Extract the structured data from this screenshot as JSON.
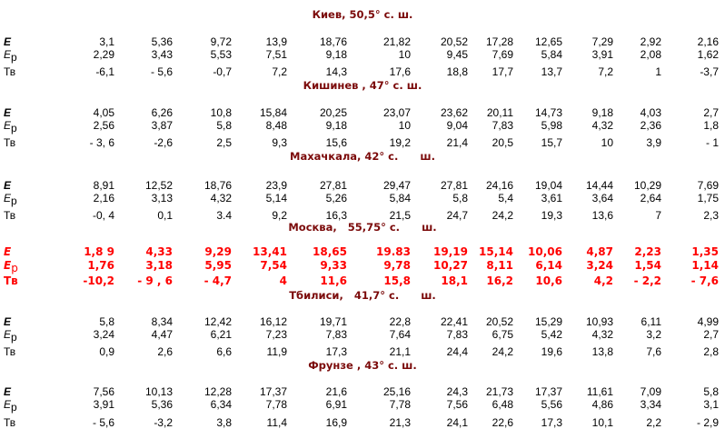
{
  "row_labels": {
    "E": "E",
    "Ep_main": "E",
    "Ep_sub": "р",
    "Tv": "Тв"
  },
  "colors": {
    "title": "#7b0a0a",
    "highlight": "#ff0000",
    "text": "#000000"
  },
  "cities": [
    {
      "title": "Киев, 50,5° с. ш.",
      "highlighted": false,
      "E": [
        "3,1",
        "5,36",
        "9,72",
        "13,9",
        "18,76",
        "21,82",
        "20,52",
        "17,28",
        "12,65",
        "7,29",
        "2,92",
        "2,16"
      ],
      "Ep": [
        "2,29",
        "3,43",
        "5,53",
        "7,51",
        "9,18",
        "10",
        "9,45",
        "7,69",
        "5,84",
        "3,91",
        "2,08",
        "1,62"
      ],
      "Tv": [
        "-6,1",
        "- 5,6",
        "-0,7",
        "7,2",
        "14,3",
        "17,6",
        "18,8",
        "17,7",
        "13,7",
        "7,2",
        "1",
        "-3,7"
      ]
    },
    {
      "title": "Кишинев , 47° с. ш.",
      "highlighted": false,
      "E": [
        "4,05",
        "6,26",
        "10,8",
        "15,84",
        "20,25",
        "23,07",
        "23,62",
        "20,11",
        "14,73",
        "9,18",
        "4,03",
        "2,7"
      ],
      "Ep": [
        "2,56",
        "3,87",
        "5,8",
        "8,48",
        "9,18",
        "10",
        "9,04",
        "7,83",
        "5,98",
        "4,32",
        "2,36",
        "1,8"
      ],
      "Tv": [
        "- 3, 6",
        "-2,6",
        "2,5",
        "9,3",
        "15,6",
        "19,2",
        "21,4",
        "20,5",
        "15,7",
        "10",
        "3,9",
        "- 1"
      ]
    },
    {
      "title": "Махачкала, 42° с.      ш.",
      "highlighted": false,
      "E": [
        "8,91",
        "12,52",
        "18,76",
        "23,9",
        "27,81",
        "29,47",
        "27,81",
        "24,16",
        "19,04",
        "14,44",
        "10,29",
        "7,69"
      ],
      "Ep": [
        "2,16",
        "3,13",
        "4,32",
        "5,14",
        "5,26",
        "5,84",
        "5,8",
        "5,4",
        "3,61",
        "3,64",
        "2,64",
        "1,75"
      ],
      "Tv": [
        "-0, 4",
        "0,1",
        "3.4",
        "9,2",
        "16,3",
        "21,5",
        "24,7",
        "24,2",
        "19,3",
        "13,6",
        "7",
        "2,3"
      ]
    },
    {
      "title": "Москва,   55,75° с.      ш.",
      "highlighted": true,
      "E": [
        "1,8 9",
        "4,33",
        "9,29",
        "13,41",
        "18,65",
        "19.83",
        "19,19",
        "15,14",
        "10,06",
        "4,87",
        "2,23",
        "1,35"
      ],
      "Ep": [
        "1,76",
        "3,18",
        "5,95",
        "7,54",
        "9,33",
        "9,78",
        "10,27",
        "8,11",
        "6,14",
        "3,24",
        "1,54",
        "1,14"
      ],
      "Tv": [
        "-10,2",
        "- 9 , 6",
        "- 4,7",
        "4",
        "11,6",
        "15,8",
        "18,1",
        "16,2",
        "10,6",
        "4,2",
        "- 2,2",
        "- 7,6"
      ]
    },
    {
      "title": "Тбилиси,   41,7° с.      ш.",
      "highlighted": false,
      "E": [
        "5,8",
        "8,34",
        "12,42",
        "16,12",
        "19,71",
        "22,8",
        "22,41",
        "20,52",
        "15,29",
        "10,93",
        "6,11",
        "4,99"
      ],
      "Ep": [
        "3,24",
        "4,47",
        "6,21",
        "7,23",
        "7,83",
        "7,64",
        "7,83",
        "6,75",
        "5,42",
        "4,32",
        "3,2",
        "2,7"
      ],
      "Tv": [
        "0,9",
        "2,6",
        "6,6",
        "11,9",
        "17,3",
        "21,1",
        "24,4",
        "24,2",
        "19,6",
        "13,8",
        "7,6",
        "2,8"
      ]
    },
    {
      "title": "Фрунзе , 43° с. ш.",
      "highlighted": false,
      "E": [
        "7,56",
        "10,13",
        "12,28",
        "17,37",
        "21,6",
        "25,16",
        "24,3",
        "21,73",
        "17,37",
        "11,61",
        "7,09",
        "5,8"
      ],
      "Ep": [
        "3,91",
        "5,36",
        "6,34",
        "7,78",
        "6,91",
        "7,78",
        "7,56",
        "6,48",
        "5,56",
        "4,86",
        "3,34",
        "3,1"
      ],
      "Tv": [
        "- 5,6",
        "-3,2",
        "3,8",
        "11,4",
        "16,9",
        "21,3",
        "24,1",
        "22,6",
        "17,3",
        "10,1",
        "2,2",
        "- 2,9"
      ]
    }
  ]
}
